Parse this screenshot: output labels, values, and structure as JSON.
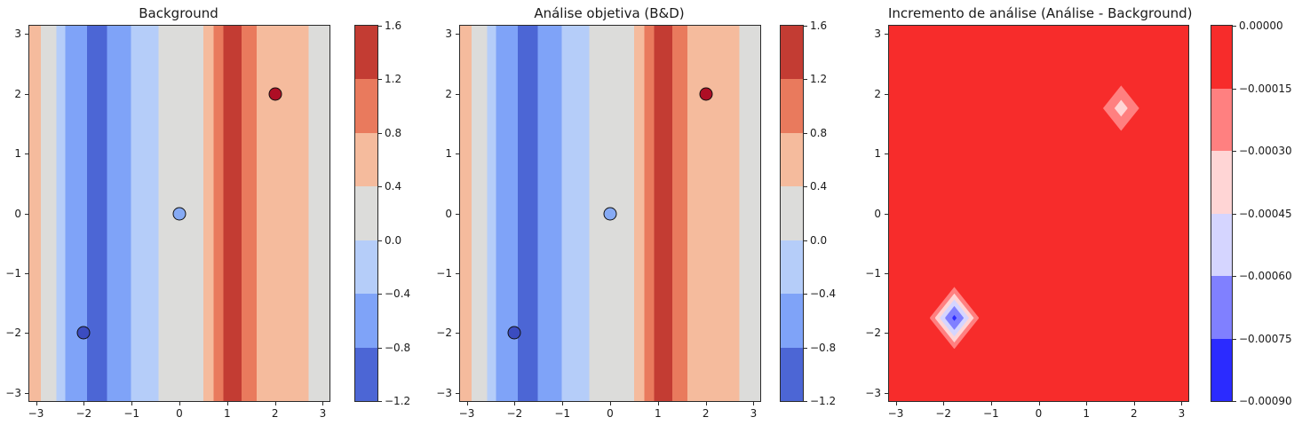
{
  "figure": {
    "background": "#ffffff"
  },
  "chart_data": [
    {
      "type": "heatmap",
      "subtype": "filled-contour-vertical-bands",
      "title": "Background",
      "xlabel": "",
      "ylabel": "",
      "xlim": [
        -3.14,
        3.14
      ],
      "ylim": [
        -3.14,
        3.14
      ],
      "grid": false,
      "xticks": [
        -3,
        -2,
        -1,
        0,
        1,
        2,
        3
      ],
      "xtick_labels": [
        "−3",
        "−2",
        "−1",
        "0",
        "1",
        "2",
        "3"
      ],
      "yticks": [
        3,
        2,
        1,
        0,
        -1,
        -2,
        -3
      ],
      "ytick_labels": [
        "3",
        "2",
        "1",
        "0",
        "−1",
        "−2",
        "−3"
      ],
      "bands": [
        {
          "x_from": -3.14,
          "x_to": -2.9,
          "value_range": [
            0.4,
            0.8
          ],
          "color": "#f5bb9d"
        },
        {
          "x_from": -2.9,
          "x_to": -2.57,
          "value_range": [
            0.0,
            0.4
          ],
          "color": "#dcdcda"
        },
        {
          "x_from": -2.57,
          "x_to": -2.39,
          "value_range": [
            -0.4,
            0.0
          ],
          "color": "#b5cdf9"
        },
        {
          "x_from": -2.39,
          "x_to": -1.93,
          "value_range": [
            -0.8,
            -0.4
          ],
          "color": "#7fa3f8"
        },
        {
          "x_from": -1.93,
          "x_to": -1.51,
          "value_range": [
            -1.2,
            -0.8
          ],
          "color": "#4c66d5"
        },
        {
          "x_from": -1.51,
          "x_to": -1.01,
          "value_range": [
            -0.8,
            -0.4
          ],
          "color": "#7fa3f8"
        },
        {
          "x_from": -1.01,
          "x_to": -0.44,
          "value_range": [
            -0.4,
            0.0
          ],
          "color": "#b5cdf9"
        },
        {
          "x_from": -0.44,
          "x_to": 0.5,
          "value_range": [
            0.0,
            0.4
          ],
          "color": "#dcdcda"
        },
        {
          "x_from": 0.5,
          "x_to": 0.72,
          "value_range": [
            0.4,
            0.8
          ],
          "color": "#f5bb9d"
        },
        {
          "x_from": 0.72,
          "x_to": 0.92,
          "value_range": [
            0.8,
            1.2
          ],
          "color": "#e97a5d"
        },
        {
          "x_from": 0.92,
          "x_to": 1.3,
          "value_range": [
            1.2,
            1.6
          ],
          "color": "#c33c33"
        },
        {
          "x_from": 1.3,
          "x_to": 1.62,
          "value_range": [
            0.8,
            1.2
          ],
          "color": "#e97a5d"
        },
        {
          "x_from": 1.62,
          "x_to": 2.7,
          "value_range": [
            0.4,
            0.8
          ],
          "color": "#f5bb9d"
        },
        {
          "x_from": 2.7,
          "x_to": 3.14,
          "value_range": [
            0.0,
            0.4
          ],
          "color": "#dcdcda"
        }
      ],
      "points": [
        {
          "x": -2,
          "y": -2,
          "color": "#3b4cc0"
        },
        {
          "x": 0,
          "y": 0,
          "color": "#86aaf4"
        },
        {
          "x": 2,
          "y": 2,
          "color": "#ae0e25"
        }
      ],
      "colorbar": {
        "min": -1.2,
        "max": 1.6,
        "tick_labels": [
          "1.6",
          "1.2",
          "0.8",
          "0.4",
          "0.0",
          "−0.4",
          "−0.8",
          "−1.2"
        ],
        "segments_top_to_bottom": [
          "#c33c33",
          "#e97a5d",
          "#f5bb9d",
          "#dcdcda",
          "#b5cdf9",
          "#7fa3f8",
          "#4c66d5"
        ]
      }
    },
    {
      "type": "heatmap",
      "subtype": "filled-contour-vertical-bands",
      "title": "Análise objetiva (B&D)",
      "xlabel": "",
      "ylabel": "",
      "xlim": [
        -3.14,
        3.14
      ],
      "ylim": [
        -3.14,
        3.14
      ],
      "grid": false,
      "xticks": [
        -3,
        -2,
        -1,
        0,
        1,
        2,
        3
      ],
      "xtick_labels": [
        "−3",
        "−2",
        "−1",
        "0",
        "1",
        "2",
        "3"
      ],
      "yticks": [
        3,
        2,
        1,
        0,
        -1,
        -2,
        -3
      ],
      "ytick_labels": [
        "3",
        "2",
        "1",
        "0",
        "−1",
        "−2",
        "−3"
      ],
      "bands": [
        {
          "x_from": -3.14,
          "x_to": -2.9,
          "value_range": [
            0.4,
            0.8
          ],
          "color": "#f5bb9d"
        },
        {
          "x_from": -2.9,
          "x_to": -2.57,
          "value_range": [
            0.0,
            0.4
          ],
          "color": "#dcdcda"
        },
        {
          "x_from": -2.57,
          "x_to": -2.39,
          "value_range": [
            -0.4,
            0.0
          ],
          "color": "#b5cdf9"
        },
        {
          "x_from": -2.39,
          "x_to": -1.93,
          "value_range": [
            -0.8,
            -0.4
          ],
          "color": "#7fa3f8"
        },
        {
          "x_from": -1.93,
          "x_to": -1.51,
          "value_range": [
            -1.2,
            -0.8
          ],
          "color": "#4c66d5"
        },
        {
          "x_from": -1.51,
          "x_to": -1.01,
          "value_range": [
            -0.8,
            -0.4
          ],
          "color": "#7fa3f8"
        },
        {
          "x_from": -1.01,
          "x_to": -0.44,
          "value_range": [
            -0.4,
            0.0
          ],
          "color": "#b5cdf9"
        },
        {
          "x_from": -0.44,
          "x_to": 0.5,
          "value_range": [
            0.0,
            0.4
          ],
          "color": "#dcdcda"
        },
        {
          "x_from": 0.5,
          "x_to": 0.72,
          "value_range": [
            0.4,
            0.8
          ],
          "color": "#f5bb9d"
        },
        {
          "x_from": 0.72,
          "x_to": 0.92,
          "value_range": [
            0.8,
            1.2
          ],
          "color": "#e97a5d"
        },
        {
          "x_from": 0.92,
          "x_to": 1.3,
          "value_range": [
            1.2,
            1.6
          ],
          "color": "#c33c33"
        },
        {
          "x_from": 1.3,
          "x_to": 1.62,
          "value_range": [
            0.8,
            1.2
          ],
          "color": "#e97a5d"
        },
        {
          "x_from": 1.62,
          "x_to": 2.7,
          "value_range": [
            0.4,
            0.8
          ],
          "color": "#f5bb9d"
        },
        {
          "x_from": 2.7,
          "x_to": 3.14,
          "value_range": [
            0.0,
            0.4
          ],
          "color": "#dcdcda"
        }
      ],
      "points": [
        {
          "x": -2,
          "y": -2,
          "color": "#3b4cc0"
        },
        {
          "x": 0,
          "y": 0,
          "color": "#86aaf4"
        },
        {
          "x": 2,
          "y": 2,
          "color": "#ae0e25"
        }
      ],
      "colorbar": {
        "min": -1.2,
        "max": 1.6,
        "tick_labels": [
          "1.6",
          "1.2",
          "0.8",
          "0.4",
          "0.0",
          "−0.4",
          "−0.8",
          "−1.2"
        ],
        "segments_top_to_bottom": [
          "#c33c33",
          "#e97a5d",
          "#f5bb9d",
          "#dcdcda",
          "#b5cdf9",
          "#7fa3f8",
          "#4c66d5"
        ]
      }
    },
    {
      "type": "heatmap",
      "subtype": "filled-contour-increment",
      "title": "Incremento de análise (Análise - Background)",
      "xlabel": "",
      "ylabel": "",
      "xlim": [
        -3.14,
        3.14
      ],
      "ylim": [
        -3.14,
        3.14
      ],
      "grid": false,
      "xticks": [
        -3,
        -2,
        -1,
        0,
        1,
        2,
        3
      ],
      "xtick_labels": [
        "−3",
        "−2",
        "−1",
        "0",
        "1",
        "2",
        "3"
      ],
      "yticks": [
        3,
        2,
        1,
        0,
        -1,
        -2,
        -3
      ],
      "ytick_labels": [
        "3",
        "2",
        "1",
        "0",
        "−1",
        "−2",
        "−3"
      ],
      "background_color": "#f72c2b",
      "background_value_range": [
        -0.00015,
        0.0
      ],
      "diamonds": [
        {
          "x": -1.77,
          "y": -1.75,
          "layers": [
            {
              "radius": 0.52,
              "value_range": [
                -0.0003,
                -0.00015
              ],
              "color": "#ff8080"
            },
            {
              "radius": 0.41,
              "value_range": [
                -0.00045,
                -0.0003
              ],
              "color": "#ffd5d5"
            },
            {
              "radius": 0.31,
              "value_range": [
                -0.0006,
                -0.00045
              ],
              "color": "#d5d5ff"
            },
            {
              "radius": 0.2,
              "value_range": [
                -0.00075,
                -0.0006
              ],
              "color": "#8080ff"
            },
            {
              "radius": 0.05,
              "value_range": [
                -0.0009,
                -0.00075
              ],
              "color": "#2b2bff"
            }
          ]
        },
        {
          "x": 1.73,
          "y": 1.76,
          "layers": [
            {
              "radius": 0.38,
              "value_range": [
                -0.0003,
                -0.00015
              ],
              "color": "#ff8080"
            },
            {
              "radius": 0.14,
              "value_range": [
                -0.00045,
                -0.0003
              ],
              "color": "#ffd5d5"
            }
          ]
        }
      ],
      "points": [],
      "colorbar": {
        "min": -0.0009,
        "max": 0.0,
        "tick_labels": [
          "0.00000",
          "−0.00015",
          "−0.00030",
          "−0.00045",
          "−0.00060",
          "−0.00075",
          "−0.00090"
        ],
        "segments_top_to_bottom": [
          "#f72c2b",
          "#ff8080",
          "#ffd5d5",
          "#d5d5ff",
          "#8080ff",
          "#2b2bff"
        ]
      }
    }
  ]
}
